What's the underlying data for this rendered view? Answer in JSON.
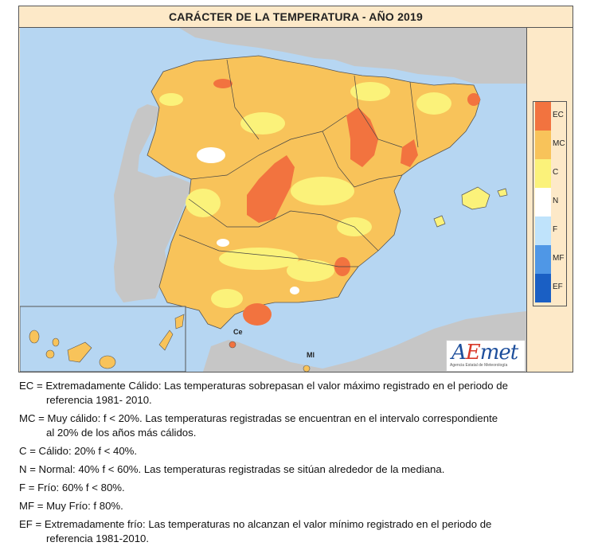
{
  "title": "CARÁCTER DE LA TEMPERATURA - AÑO 2019",
  "legend": [
    {
      "code": "EC",
      "color": "#f2733f"
    },
    {
      "code": "MC",
      "color": "#f8c35a"
    },
    {
      "code": "C",
      "color": "#fbf27a"
    },
    {
      "code": "N",
      "color": "#ffffff"
    },
    {
      "code": "F",
      "color": "#bfe3fb"
    },
    {
      "code": "MF",
      "color": "#4f97e6"
    },
    {
      "code": "EF",
      "color": "#1a5fc4"
    }
  ],
  "map": {
    "sea_color": "#b6d6f2",
    "land_other_color": "#c6c6c6",
    "ceuta_label": "Ce",
    "melilla_label": "Ml"
  },
  "logo": {
    "text_a": "A",
    "text_e": "E",
    "text_rest": "met",
    "subtitle": "Agencia Estatal de Meteorología"
  },
  "notes": [
    {
      "line1": "EC = Extremadamente Cálido: Las temperaturas sobrepasan el valor máximo registrado en el periodo de",
      "line2": "referencia 1981- 2010."
    },
    {
      "line1": "MC = Muy cálido: f < 20%. Las temperaturas registradas se encuentran en el intervalo correspondiente",
      "line2": "al 20% de los años más cálidos."
    },
    {
      "line1": "C = Cálido: 20%    f < 40%.",
      "line2": ""
    },
    {
      "line1": "N = Normal: 40%    f < 60%. Las temperaturas registradas se sitúan alrededor de la mediana.",
      "line2": ""
    },
    {
      "line1": "F = Frío: 60%    f < 80%.",
      "line2": ""
    },
    {
      "line1": "MF = Muy Frío: f    80%.",
      "line2": ""
    },
    {
      "line1": "EF = Extremadamente frío: Las temperaturas no alcanzan el valor mínimo registrado en el periodo de",
      "line2": "referencia 1981-2010."
    }
  ]
}
